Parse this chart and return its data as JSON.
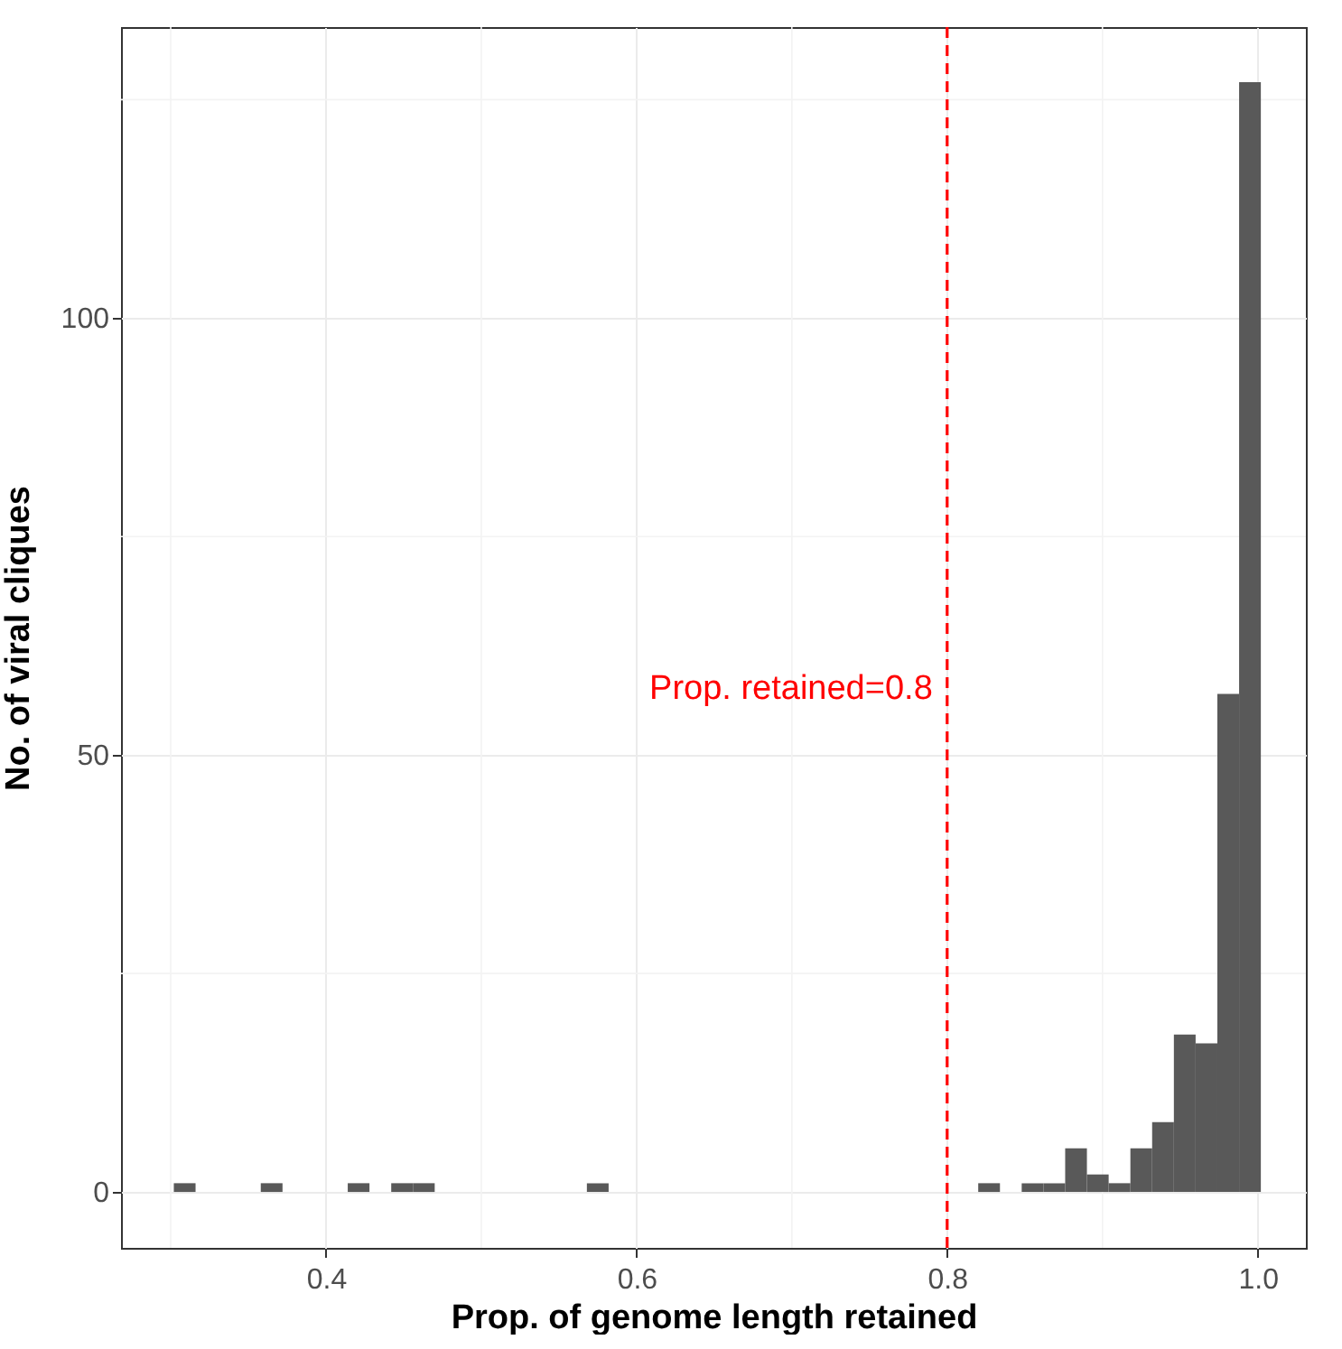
{
  "chart_data": {
    "type": "histogram",
    "xlabel": "Prop. of genome length retained",
    "ylabel": "No. of viral cliques",
    "bins": [
      0.302,
      0.316,
      0.33,
      0.344,
      0.358,
      0.372,
      0.386,
      0.4,
      0.414,
      0.428,
      0.442,
      0.456,
      0.47,
      0.484,
      0.498,
      0.512,
      0.526,
      0.54,
      0.554,
      0.568,
      0.582,
      0.596,
      0.61,
      0.624,
      0.638,
      0.652,
      0.666,
      0.68,
      0.694,
      0.708,
      0.722,
      0.736,
      0.75,
      0.764,
      0.778,
      0.792,
      0.806,
      0.82,
      0.834,
      0.848,
      0.862,
      0.876,
      0.89,
      0.904,
      0.918,
      0.932,
      0.946,
      0.96,
      0.974,
      0.988,
      1.002
    ],
    "values": [
      1,
      0,
      0,
      0,
      1,
      0,
      0,
      0,
      1,
      0,
      1,
      1,
      0,
      0,
      0,
      0,
      0,
      0,
      0,
      1,
      0,
      0,
      0,
      0,
      0,
      0,
      0,
      0,
      0,
      0,
      0,
      0,
      0,
      0,
      0,
      0,
      0,
      1,
      0,
      1,
      1,
      5,
      2,
      1,
      5,
      8,
      18,
      17,
      57,
      127
    ],
    "color": "#595959",
    "xlim": [
      0.268,
      1.031
    ],
    "ylim": [
      -6.4,
      133.3
    ],
    "xticks": [
      0.4,
      0.6,
      0.8,
      {
        "value": 1,
        "label": "1.0"
      }
    ],
    "yticks": [
      0,
      50,
      100
    ],
    "grid": true,
    "ref_lines": [
      {
        "axis": "x",
        "value": 0.8,
        "label": "Prop. retained=0.8",
        "color": "#ff0000",
        "line_style": "dashed"
      }
    ]
  }
}
